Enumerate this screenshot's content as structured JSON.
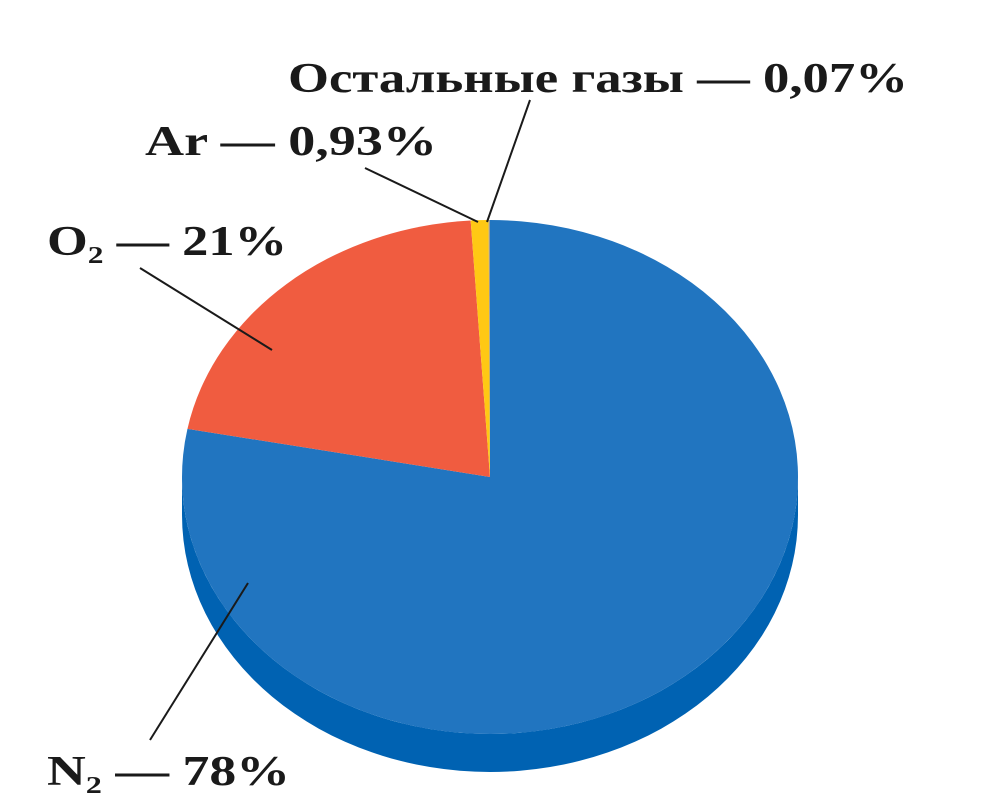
{
  "chart_data": {
    "type": "pie",
    "values": [
      78,
      21,
      0.93,
      0.07
    ],
    "value_labels": [
      "N₂ — 78%",
      "O₂ — 21%",
      "Ar — 0,93%",
      "Остальные газы — 0,07%"
    ],
    "colors": [
      "#2175c0",
      "#f05c40",
      "#ffc814",
      "#9a9a9a"
    ],
    "side_colors": [
      "#0062b2",
      "#c94630",
      "#d9a800",
      "#777777"
    ]
  }
}
